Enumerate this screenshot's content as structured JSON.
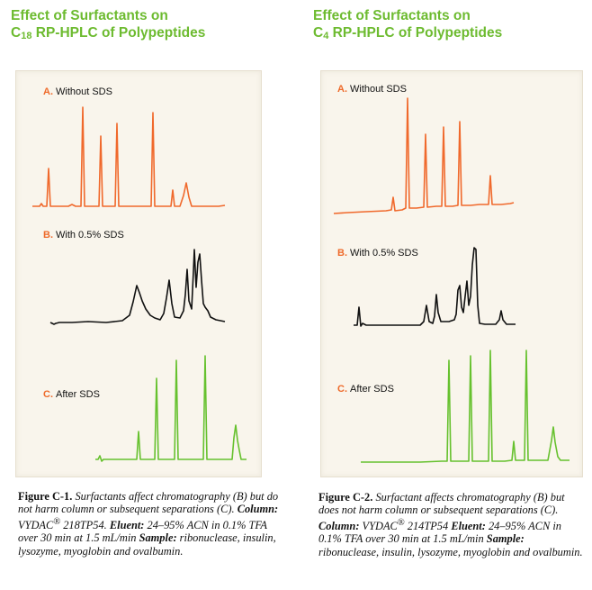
{
  "colors": {
    "title": "#6dbb30",
    "panel_background": "#f9f5ec",
    "trace_without_sds": "#f0692c",
    "trace_with_sds": "#111111",
    "trace_after_sds": "#66c12e",
    "label_letter": "#ee6a2a"
  },
  "figures": [
    {
      "title_line1": "Effect of Surfactants on",
      "title_prefix": "C",
      "title_sub": "18",
      "title_rest": " RP-HPLC of Polypeptides",
      "traces": [
        {
          "letter": "A.",
          "label": "Without SDS"
        },
        {
          "letter": "B.",
          "label": "With 0.5% SDS"
        },
        {
          "letter": "C.",
          "label": "After SDS"
        }
      ],
      "caption": {
        "fig_label": "Figure C-1.",
        "part1": " Surfactants affect chromatography (B) but do not harm column or subsequent separations (C). ",
        "column_label": "Column:",
        "column_text": " VYDAC",
        "reg": "®",
        "column_model": " 218TP54.",
        "eluent_label": "Eluent:",
        "eluent_text": " 24–95% ACN in 0.1% TFA over 30 min at 1.5 mL/min ",
        "sample_label": "Sample:",
        "sample_text": " ribonuclease, insulin, lysozyme, myoglobin and ovalbumin."
      }
    },
    {
      "title_line1": "Effect of Surfactants on",
      "title_prefix": "C",
      "title_sub": "4",
      "title_rest": " RP-HPLC of Polypeptides",
      "traces": [
        {
          "letter": "A.",
          "label": "Without SDS"
        },
        {
          "letter": "B.",
          "label": "With 0.5% SDS"
        },
        {
          "letter": "C.",
          "label": "After SDS"
        }
      ],
      "caption": {
        "fig_label": "Figure C-2.",
        "part1": " Surfactant affects chromatography (B) but does not harm column or subsequent separations (C). ",
        "column_label": "Column:",
        "column_text": " VYDAC",
        "reg": "®",
        "column_model": " 214TP54",
        "eluent_label": "Eluent:",
        "eluent_text": " 24–95% ACN in 0.1% TFA over 30 min at 1.5 mL/min ",
        "sample_label": "Sample:",
        "sample_text": " ribonuclease, insulin, lysozyme, myoglobin and ovalbumin."
      }
    }
  ]
}
